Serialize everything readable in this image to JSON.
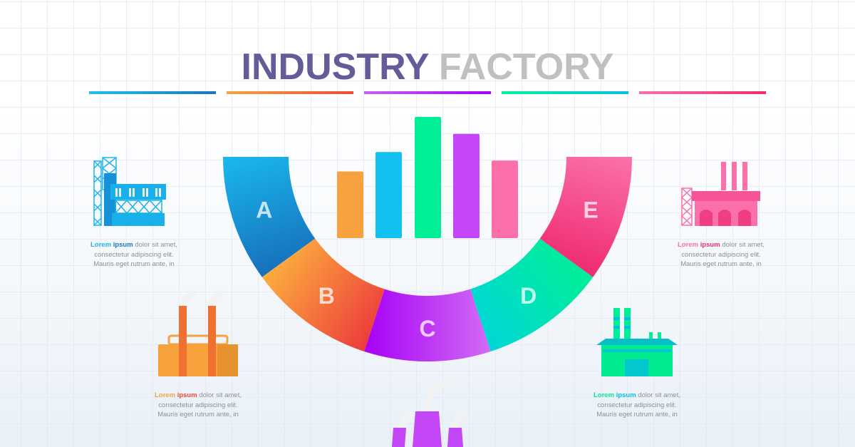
{
  "title": {
    "part1": "INDUSTRY",
    "part2": "FACTORY",
    "color1": "#625d99",
    "color2": "#c0c0c2"
  },
  "underlines": [
    {
      "from": "#1ec0ef",
      "to": "#1677c0"
    },
    {
      "from": "#f7a23f",
      "to": "#ef4a36"
    },
    {
      "from": "#c660f6",
      "to": "#a600f4"
    },
    {
      "from": "#00f29a",
      "to": "#04bde0"
    },
    {
      "from": "#fb6fab",
      "to": "#ee2b6f"
    }
  ],
  "segments": [
    {
      "letter": "A",
      "from": "#1ab8ee",
      "to": "#1670bb"
    },
    {
      "letter": "B",
      "from": "#fdae3e",
      "to": "#ec3b3b"
    },
    {
      "letter": "C",
      "from": "#a700f5",
      "to": "#d26cf4"
    },
    {
      "letter": "D",
      "from": "#00d6d8",
      "to": "#00ef96"
    },
    {
      "letter": "E",
      "from": "#ef2a72",
      "to": "#fb72aa"
    }
  ],
  "bars": [
    {
      "level": 0.55,
      "color": "#f7a13f"
    },
    {
      "level": 0.71,
      "color": "#13c0f2"
    },
    {
      "level": 1.0,
      "color": "#00ef96"
    },
    {
      "level": 0.86,
      "color": "#c447f7"
    },
    {
      "level": 0.64,
      "color": "#fb6fab"
    }
  ],
  "descriptions": [
    {
      "word1": "Lorem",
      "word2": "ipsum",
      "rest1": " dolor sit amet,",
      "line2": "consectetur adipiscing elit.",
      "line3": "Mauris eget rutrum ante, in",
      "c1": "#1cb6ee",
      "c2": "#1677c0"
    },
    {
      "word1": "Lorem",
      "word2": "ipsum",
      "rest1": " dolor sit amet,",
      "line2": "consectetur adipiscing elit.",
      "line3": "Mauris eget rutrum ante, in",
      "c1": "#f7a23f",
      "c2": "#ef4a36"
    },
    {
      "word1": "Lorem",
      "word2": "ipsum",
      "rest1": " dolor sit amet,",
      "line2": "consectetur adipiscing elit.",
      "line3": "Mauris eget rutrum ante, in",
      "c1": "#00e890",
      "c2": "#04bde0"
    },
    {
      "word1": "Lorem",
      "word2": "ipsum",
      "rest1": " dolor sit amet,",
      "line2": "consectetur adipiscing elit.",
      "line3": "Mauris eget rutrum ante, in",
      "c1": "#fb6fab",
      "c2": "#ee2b6f"
    }
  ]
}
